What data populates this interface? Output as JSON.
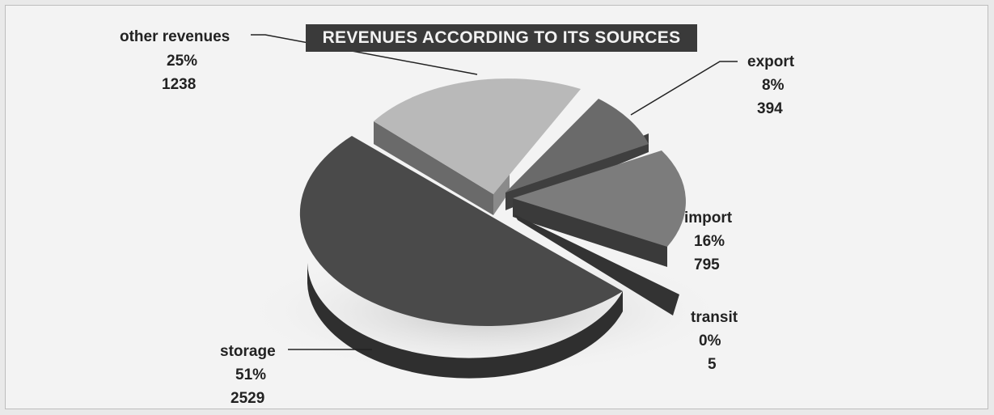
{
  "chart_data": {
    "type": "pie",
    "title": "REVENUES ACCORDING TO ITS SOURCES",
    "slices": [
      {
        "label": "storage",
        "percent": "51%",
        "value": 2529,
        "display_value": "2529",
        "color": "#4a4a4a"
      },
      {
        "label": "other revenues",
        "percent": "25%",
        "value": 1238,
        "display_value": "1238",
        "color": "#b9b9b9"
      },
      {
        "label": "export",
        "percent": "8%",
        "value": 394,
        "display_value": "394",
        "color": "#6a6a6a"
      },
      {
        "label": "import",
        "percent": "16%",
        "value": 795,
        "display_value": "795",
        "color": "#7c7c7c"
      },
      {
        "label": "transit",
        "percent": "0%",
        "value": 5,
        "display_value": "5",
        "color": "#333333"
      }
    ],
    "style": "3d-exploded-pie"
  }
}
